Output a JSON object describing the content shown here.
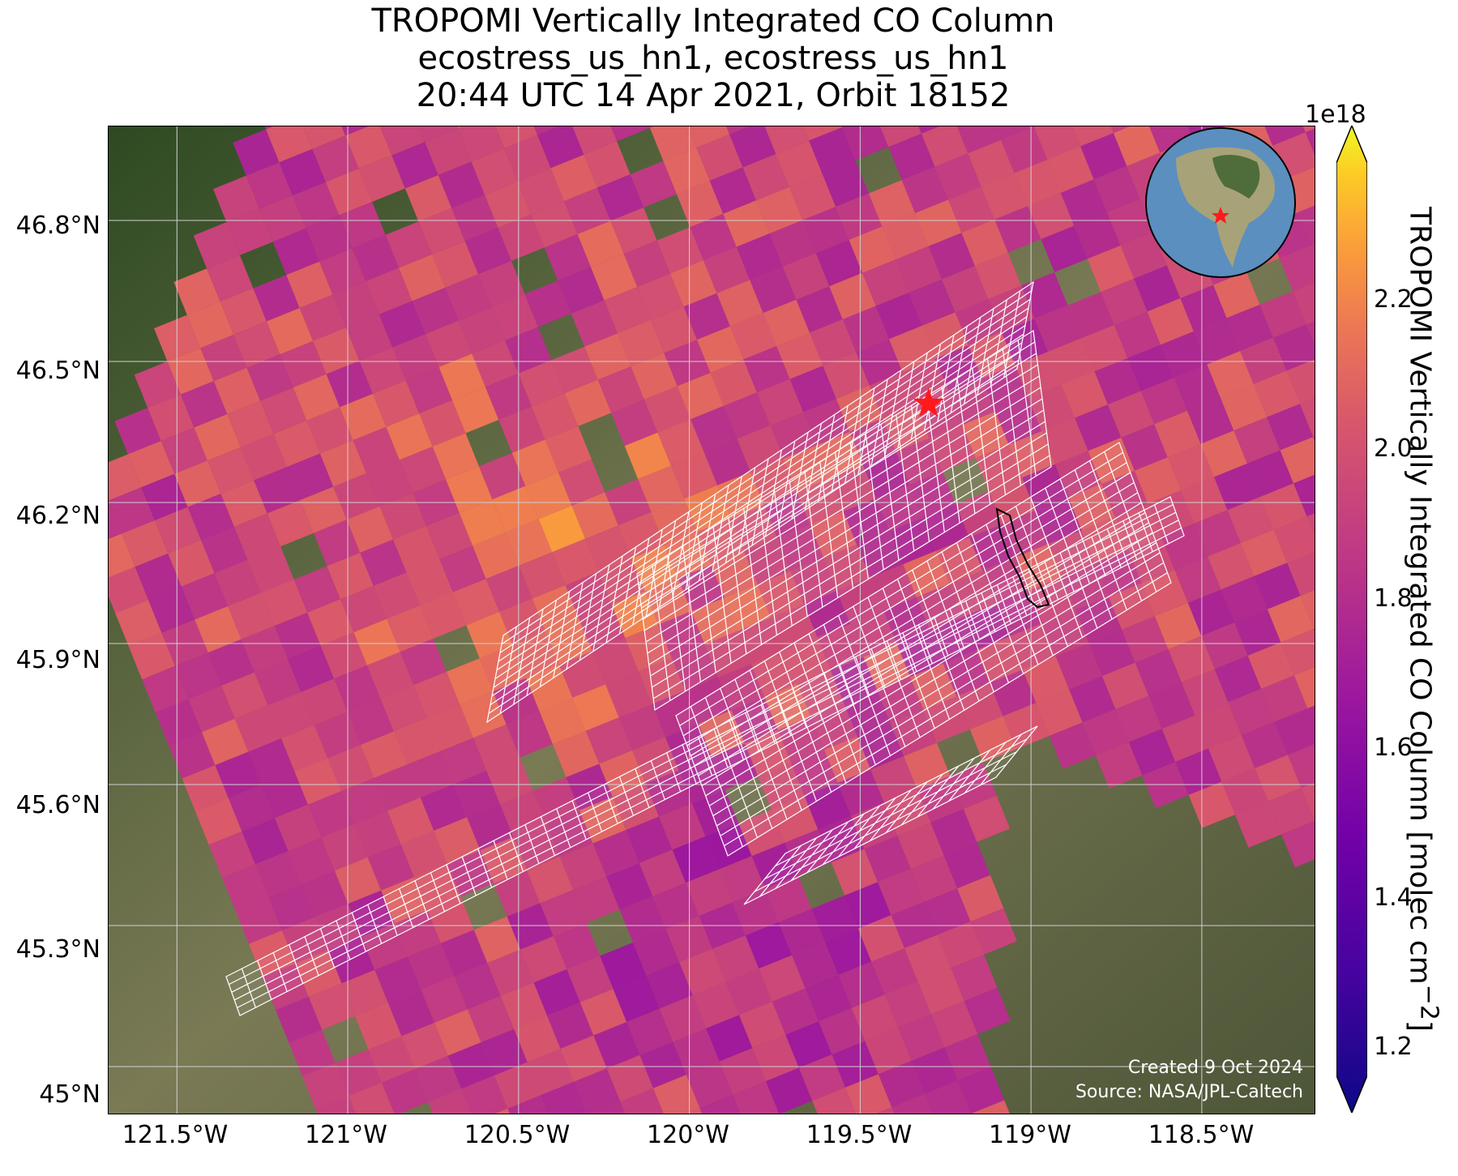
{
  "title": {
    "line1": "TROPOMI Vertically Integrated CO Column",
    "line2": "ecostress_us_hn1, ecostress_us_hn1",
    "line3": "20:44 UTC 14 Apr 2021, Orbit 18152"
  },
  "map": {
    "lat_ticks": [
      "46.8°N",
      "46.5°N",
      "46.2°N",
      "45.9°N",
      "45.6°N",
      "45.3°N",
      "45°N"
    ],
    "lon_ticks": [
      "121.5°W",
      "121°W",
      "120.5°W",
      "120°W",
      "119.5°W",
      "119°W",
      "118.5°W"
    ],
    "lon_range": [
      -121.7,
      -118.17
    ],
    "lat_range": [
      44.9,
      47.0
    ],
    "grid": true,
    "site_marker": {
      "lat": 46.41,
      "lon": -119.3,
      "color": "#ff1a1a",
      "symbol": "star"
    },
    "credit_created": "Created 9 Oct 2024",
    "credit_source": "Source: NASA/JPL-Caltech",
    "inset": "globe-locator"
  },
  "colorbar": {
    "exponent": "1e18",
    "label": "TROPOMI Vertically Integrated CO Column [molec cm",
    "label_sup": "−2",
    "label_end": "]",
    "ticks": [
      "1.2",
      "1.4",
      "1.6",
      "1.8",
      "2.0",
      "2.2"
    ],
    "range": [
      1.12,
      2.36
    ],
    "colormap": "plasma"
  },
  "chart_data": {
    "type": "heatmap",
    "variable": "TROPOMI Vertically Integrated CO Column",
    "units": "molec cm^-2 (×1e18)",
    "value_range": [
      1.2,
      2.3
    ]
  }
}
